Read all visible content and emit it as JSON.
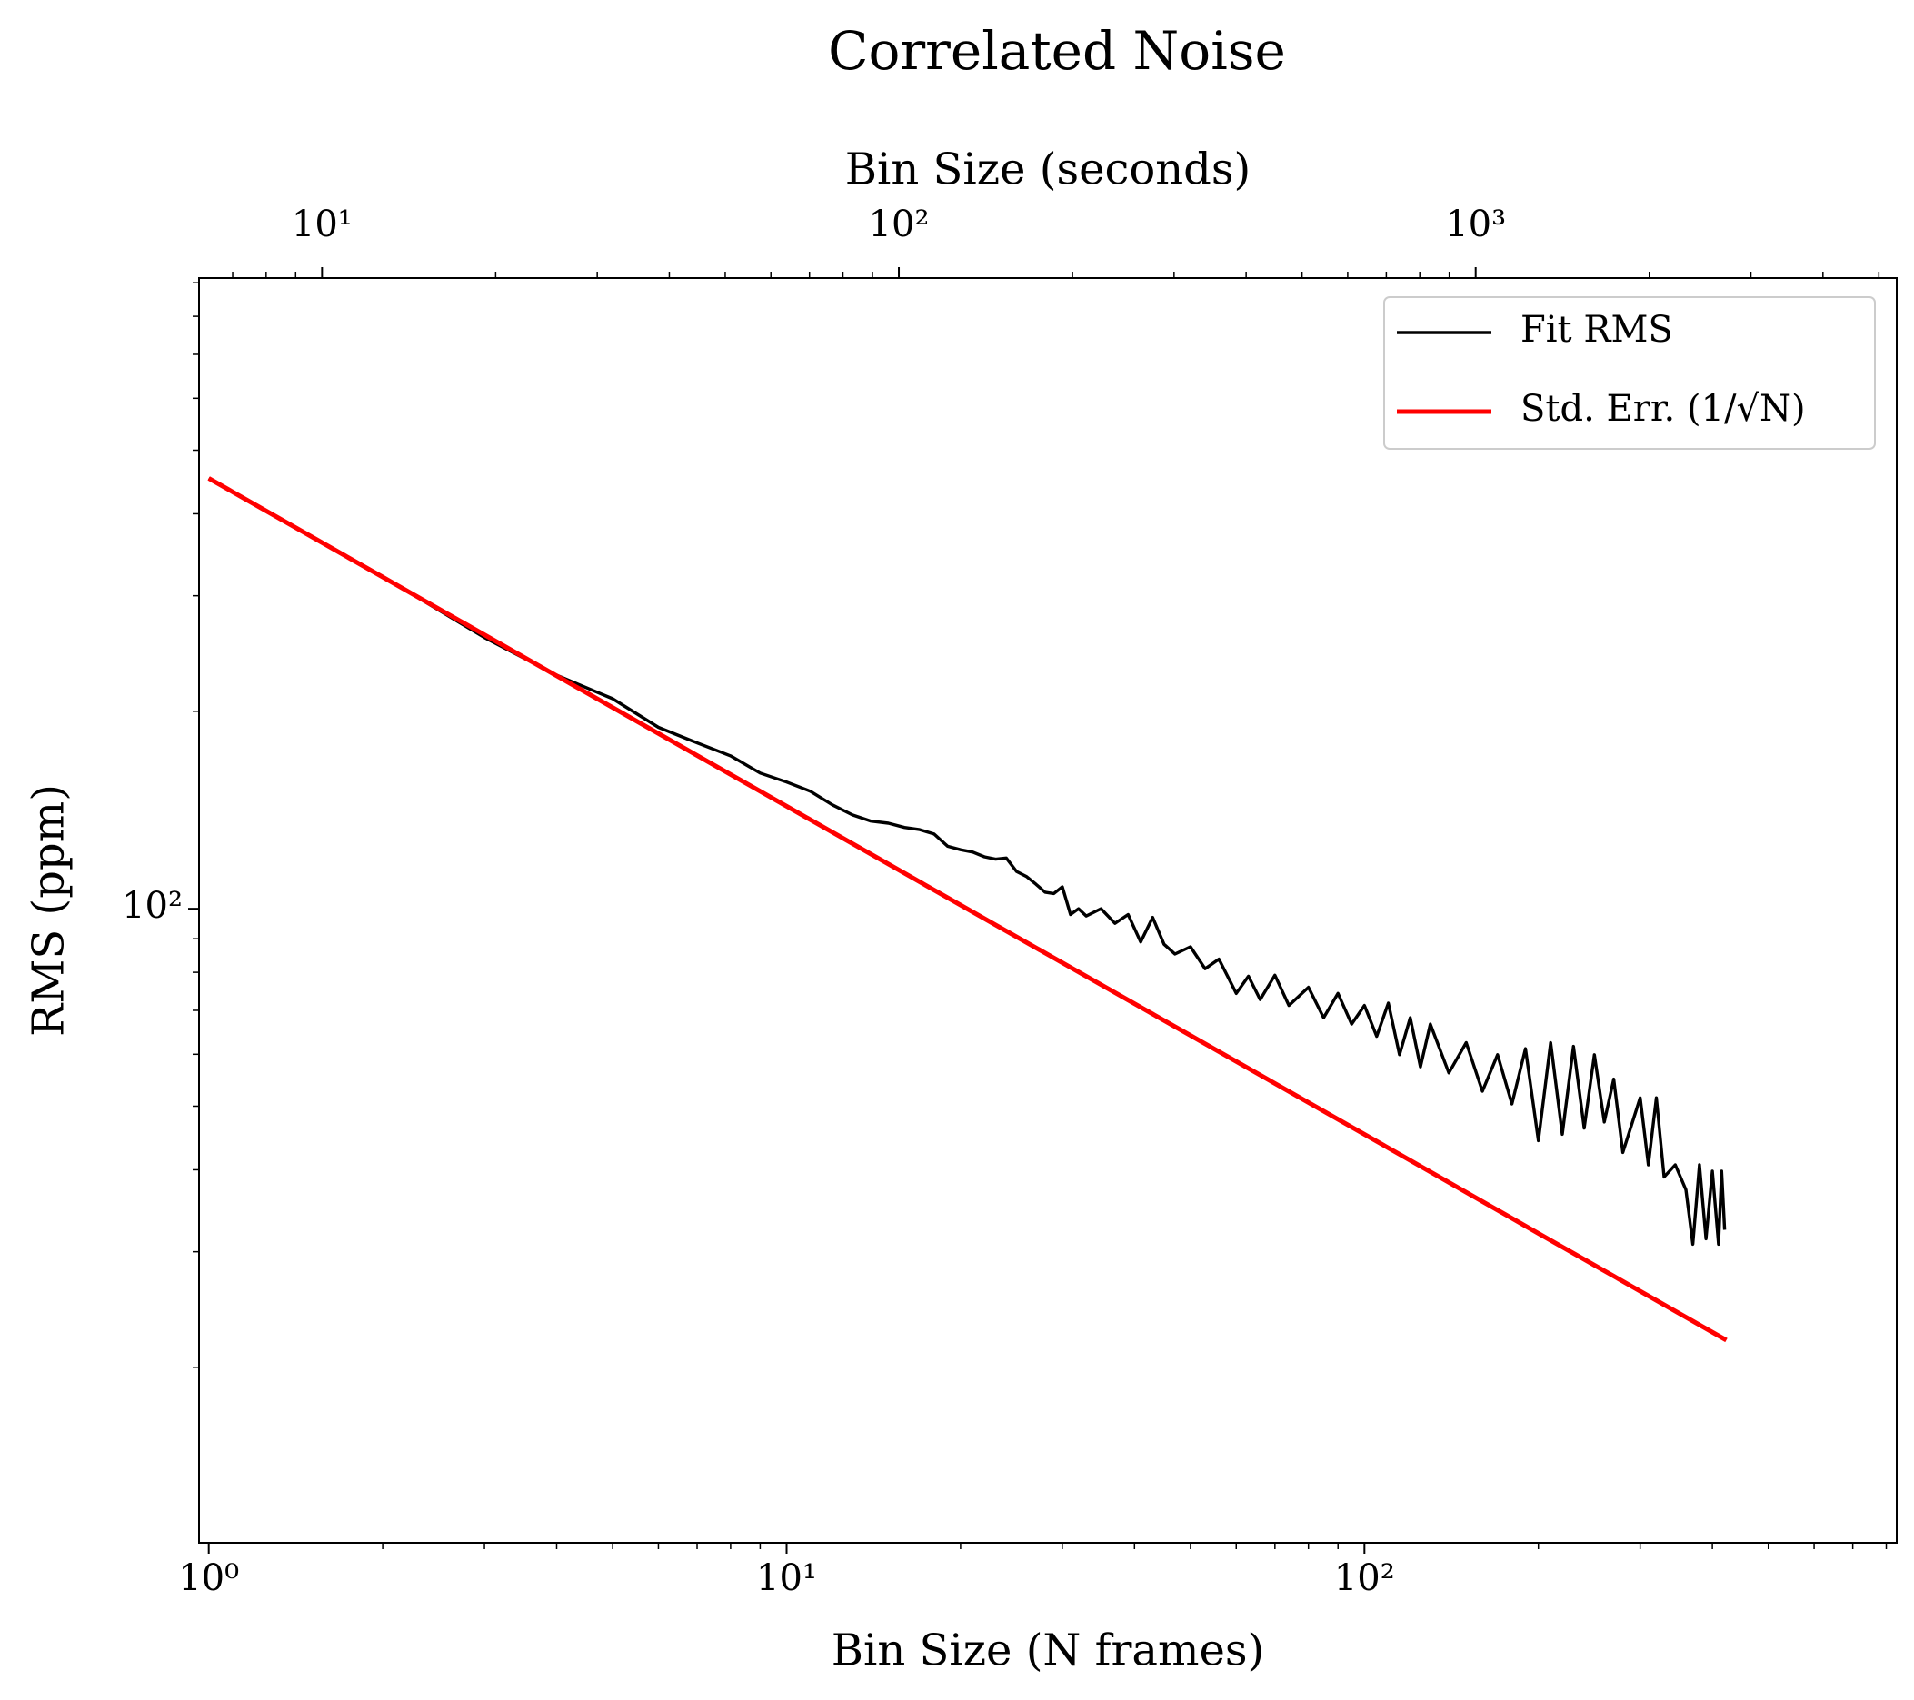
{
  "chart_data": {
    "type": "line",
    "title": "Correlated Noise",
    "xlabel": "Bin Size (N frames)",
    "ylabel": "RMS (ppm)",
    "x2label": "Bin Size (seconds)",
    "xscale": "log",
    "yscale": "log",
    "xlim": [
      0.962,
      834
    ],
    "ylim": [
      10.8,
      915
    ],
    "x2lim": [
      6.12,
      5370
    ],
    "xticks": [
      {
        "value": 1,
        "label": "10⁰"
      },
      {
        "value": 10,
        "label": "10¹"
      },
      {
        "value": 100,
        "label": "10²"
      }
    ],
    "xminorticks": [
      2,
      3,
      4,
      5,
      6,
      7,
      8,
      9,
      20,
      30,
      40,
      50,
      60,
      70,
      80,
      90,
      200,
      300,
      400,
      500,
      600,
      700,
      800
    ],
    "yticks": [
      {
        "value": 100,
        "label": "10²"
      }
    ],
    "yminorticks": [
      20,
      30,
      40,
      50,
      60,
      70,
      80,
      90,
      200,
      300,
      400,
      500,
      600,
      700,
      800,
      900
    ],
    "x2ticks": [
      {
        "value": 10,
        "label": "10¹"
      },
      {
        "value": 100,
        "label": "10²"
      },
      {
        "value": 1000,
        "label": "10³"
      }
    ],
    "x2minorticks": [
      7,
      8,
      9,
      20,
      30,
      40,
      50,
      60,
      70,
      80,
      90,
      200,
      300,
      400,
      500,
      600,
      700,
      800,
      900,
      2000,
      3000,
      4000,
      5000
    ],
    "legend": "upper right",
    "series": [
      {
        "name": "Fit RMS",
        "color": "#000000",
        "x": [
          1,
          2,
          3,
          4,
          5,
          6,
          7,
          8,
          9,
          10,
          11,
          12,
          13,
          14,
          15,
          16,
          17,
          18,
          19,
          20,
          21,
          22,
          23,
          24,
          25,
          26,
          27,
          28,
          29,
          30,
          31,
          32,
          33,
          35,
          37,
          39,
          41,
          43,
          45,
          47,
          50,
          53,
          56,
          60,
          63,
          66,
          70,
          74,
          80,
          85,
          90,
          95,
          100,
          105,
          110,
          115,
          120,
          125,
          130,
          140,
          150,
          160,
          170,
          180,
          190,
          200,
          210,
          220,
          230,
          240,
          250,
          260,
          270,
          280,
          300,
          310,
          320,
          330,
          345,
          360,
          370,
          380,
          390,
          400,
          410,
          415,
          420
        ],
        "values": [
          453,
          321,
          259,
          227,
          209,
          189,
          179,
          171,
          161,
          156,
          151,
          144,
          139,
          136,
          135,
          133,
          132,
          130,
          124.5,
          123,
          122,
          120,
          119,
          119.5,
          114,
          112,
          109,
          106,
          105.5,
          108,
          98,
          100,
          97.5,
          100,
          95,
          98,
          89,
          97,
          88.3,
          85.3,
          87.5,
          81,
          83.8,
          74.3,
          78.9,
          72.7,
          79.2,
          71.2,
          75.9,
          68.2,
          74.3,
          66.7,
          71.2,
          63.9,
          71.8,
          59.9,
          68.2,
          57.4,
          66.7,
          56.2,
          62.5,
          52.7,
          59.9,
          50.4,
          61.2,
          44.3,
          62.5,
          45.3,
          61.7,
          46.3,
          59.9,
          47.3,
          55,
          42.5,
          51.5,
          40.7,
          51.5,
          39,
          40.7,
          37.3,
          30.8,
          40.7,
          31.4,
          39.8,
          30.8,
          39.8,
          32.4
        ]
      },
      {
        "name": "Std. Err. (1/√N)",
        "color": "#ff0000",
        "x": [
          1,
          2,
          5,
          10,
          20,
          50,
          100,
          200,
          423
        ],
        "values": [
          453,
          320.3,
          202.6,
          143.3,
          101.3,
          64.1,
          45.3,
          32.0,
          22.0
        ]
      }
    ]
  }
}
